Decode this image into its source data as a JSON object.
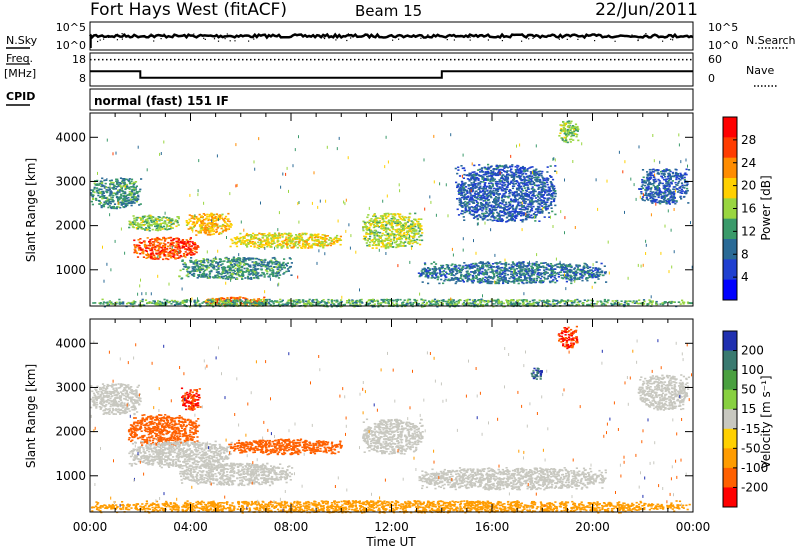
{
  "header": {
    "title": "Fort Hays West (fitACF)",
    "beam": "Beam 15",
    "date": "22/Jun/2011"
  },
  "mode_label": "normal (fast) 151 IF",
  "side_labels": {
    "nsky": "N.Sky",
    "nsearch": "N.Search",
    "freq_line1": "Freq.",
    "freq_line2": "[MHz]",
    "nave": "Nave",
    "cpid": "CPID"
  },
  "noise_panel": {
    "left_ticks": [
      "10^5",
      "10^0"
    ],
    "right_ticks": [
      "10^5",
      "10^0"
    ]
  },
  "freq_panel": {
    "left_ticks": [
      "18",
      "8"
    ],
    "right_ticks": [
      "60",
      "0"
    ]
  },
  "colorbars": {
    "power": {
      "label": "Power [dB]",
      "ticks": [
        "28",
        "24",
        "20",
        "16",
        "12",
        "8",
        "4"
      ],
      "colors": [
        "#ff0000",
        "#ff3c00",
        "#ff8c00",
        "#ffd000",
        "#99d640",
        "#3a9a6a",
        "#2a6a96",
        "#2040d0",
        "#0000ff"
      ]
    },
    "velocity": {
      "label": "Velocity [m s⁻¹]",
      "ticks": [
        "200",
        "100",
        "50",
        "15",
        "-15",
        "-50",
        "-100",
        "-200"
      ],
      "colors": [
        "#2030b0",
        "#3a7a70",
        "#4aa040",
        "#88d040",
        "#c8c8c0",
        "#ffd000",
        "#ff9c00",
        "#ff6000",
        "#ff0000"
      ]
    }
  },
  "axes": {
    "ylabel": "Slant Range [km]",
    "yticks": [
      "4000",
      "3000",
      "2000",
      "1000"
    ],
    "xlabel": "Time UT",
    "xticks": [
      "00:00",
      "04:00",
      "08:00",
      "12:00",
      "16:00",
      "20:00",
      "00:00"
    ]
  },
  "chart_data": [
    {
      "type": "line",
      "panel": "frequency",
      "x_unit": "hours UT",
      "series": [
        {
          "name": "Freq.",
          "x": [
            0,
            2.0,
            2.0,
            14.0,
            14.0,
            24
          ],
          "y": [
            12.5,
            12.5,
            10.5,
            10.5,
            12.5,
            12.5
          ]
        },
        {
          "name": "Nave",
          "x": [
            0,
            24
          ],
          "y": [
            16,
            16
          ]
        }
      ],
      "ylim": [
        8,
        18
      ]
    },
    {
      "type": "heatmap",
      "panel": "power",
      "ylabel": "Slant Range [km]",
      "xlabel": "Time UT",
      "xlim": [
        0,
        24
      ],
      "ylim": [
        180,
        4550
      ],
      "colorbar": "Power [dB]",
      "regions": [
        {
          "t0": 0.0,
          "t1": 2.0,
          "r0": 2400,
          "r1": 3100,
          "value": 10
        },
        {
          "t0": 1.5,
          "t1": 3.5,
          "r0": 1900,
          "r1": 2250,
          "value": 14
        },
        {
          "t0": 1.7,
          "t1": 4.3,
          "r0": 1250,
          "r1": 1750,
          "value": 26
        },
        {
          "t0": 3.8,
          "t1": 5.6,
          "r0": 1800,
          "r1": 2300,
          "value": 20
        },
        {
          "t0": 5.5,
          "t1": 10.0,
          "r0": 1500,
          "r1": 1850,
          "value": 18
        },
        {
          "t0": 3.5,
          "t1": 8.0,
          "r0": 800,
          "r1": 1300,
          "value": 10
        },
        {
          "t0": 4.5,
          "t1": 7.0,
          "r0": 200,
          "r1": 400,
          "value": 24
        },
        {
          "t0": 10.8,
          "t1": 13.2,
          "r0": 1500,
          "r1": 2300,
          "value": 16
        },
        {
          "t0": 13.0,
          "t1": 20.5,
          "r0": 700,
          "r1": 1200,
          "value": 8
        },
        {
          "t0": 14.5,
          "t1": 18.5,
          "r0": 2100,
          "r1": 3400,
          "value": 6
        },
        {
          "t0": 18.6,
          "t1": 19.4,
          "r0": 3900,
          "r1": 4400,
          "value": 14
        },
        {
          "t0": 21.8,
          "t1": 23.8,
          "r0": 2500,
          "r1": 3300,
          "value": 6
        },
        {
          "t0": 0.0,
          "t1": 24.0,
          "r0": 180,
          "r1": 350,
          "value": 12
        }
      ]
    },
    {
      "type": "heatmap",
      "panel": "velocity",
      "ylabel": "Slant Range [km]",
      "xlabel": "Time UT",
      "xlim": [
        0,
        24
      ],
      "ylim": [
        180,
        4550
      ],
      "colorbar": "Velocity [m s⁻¹]",
      "regions": [
        {
          "t0": 0.0,
          "t1": 2.0,
          "r0": 2400,
          "r1": 3100,
          "value": 0
        },
        {
          "t0": 1.5,
          "t1": 4.3,
          "r0": 1700,
          "r1": 2400,
          "value": -150
        },
        {
          "t0": 1.5,
          "t1": 5.6,
          "r0": 1200,
          "r1": 1800,
          "value": 0
        },
        {
          "t0": 3.6,
          "t1": 4.4,
          "r0": 2500,
          "r1": 3000,
          "value": -200
        },
        {
          "t0": 5.5,
          "t1": 10.0,
          "r0": 1500,
          "r1": 1850,
          "value": -150
        },
        {
          "t0": 3.5,
          "t1": 8.0,
          "r0": 800,
          "r1": 1300,
          "value": 0
        },
        {
          "t0": 10.8,
          "t1": 13.2,
          "r0": 1500,
          "r1": 2300,
          "value": 0
        },
        {
          "t0": 13.0,
          "t1": 20.5,
          "r0": 700,
          "r1": 1200,
          "value": 0
        },
        {
          "t0": 18.6,
          "t1": 19.4,
          "r0": 3900,
          "r1": 4400,
          "value": -200
        },
        {
          "t0": 17.5,
          "t1": 18.0,
          "r0": 3200,
          "r1": 3450,
          "value": 200
        },
        {
          "t0": 21.8,
          "t1": 23.8,
          "r0": 2500,
          "r1": 3300,
          "value": 0
        },
        {
          "t0": 0.0,
          "t1": 24.0,
          "r0": 180,
          "r1": 450,
          "value": -60
        }
      ]
    }
  ]
}
